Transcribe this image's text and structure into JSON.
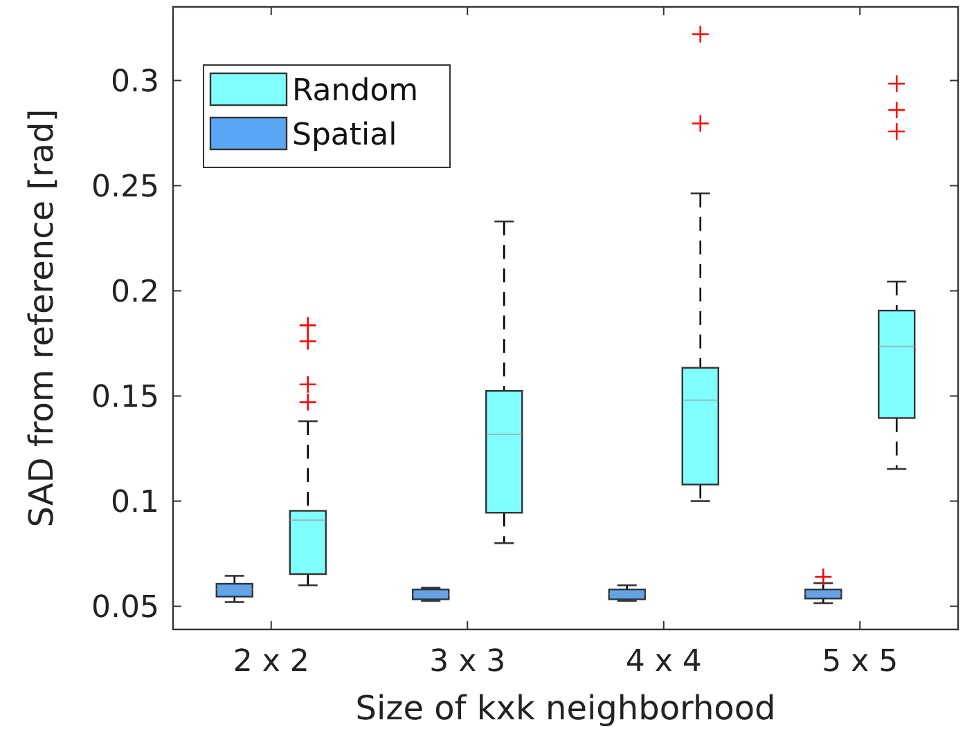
{
  "chart_data": {
    "type": "box",
    "xlabel": "Size of kxk neighborhood",
    "ylabel": "SAD from reference [rad]",
    "categories": [
      "2 x 2",
      "3 x 3",
      "4 x 4",
      "5 x 5"
    ],
    "ylim": [
      0.039,
      0.335
    ],
    "yticks": [
      0.05,
      0.1,
      0.15,
      0.2,
      0.25,
      0.3
    ],
    "grid": false,
    "legend": "top left",
    "series": [
      {
        "name": "Spatial",
        "color": "#5aa5f5",
        "boxes": [
          {
            "low": 0.052,
            "q1": 0.0546,
            "median": 0.058,
            "q3": 0.0607,
            "high": 0.0645
          },
          {
            "low": 0.0526,
            "q1": 0.0533,
            "median": 0.0557,
            "q3": 0.058,
            "high": 0.0588
          },
          {
            "low": 0.0526,
            "q1": 0.0533,
            "median": 0.0559,
            "q3": 0.058,
            "high": 0.06
          },
          {
            "low": 0.0515,
            "q1": 0.0537,
            "median": 0.0561,
            "q3": 0.058,
            "high": 0.061,
            "outliers": [
              0.064
            ]
          }
        ]
      },
      {
        "name": "Random",
        "color": "#80ffff",
        "boxes": [
          {
            "low": 0.06,
            "q1": 0.0653,
            "median": 0.091,
            "q3": 0.0954,
            "high": 0.138,
            "outliers": [
              0.147,
              0.1555,
              0.176,
              0.1836
            ]
          },
          {
            "low": 0.08,
            "q1": 0.0945,
            "median": 0.1318,
            "q3": 0.1524,
            "high": 0.233
          },
          {
            "low": 0.1,
            "q1": 0.1079,
            "median": 0.148,
            "q3": 0.1634,
            "high": 0.2463,
            "outliers": [
              0.2796,
              0.322
            ]
          },
          {
            "low": 0.1153,
            "q1": 0.1395,
            "median": 0.1735,
            "q3": 0.1906,
            "high": 0.2044,
            "outliers": [
              0.2758,
              0.286,
              0.2985
            ]
          }
        ]
      }
    ]
  }
}
